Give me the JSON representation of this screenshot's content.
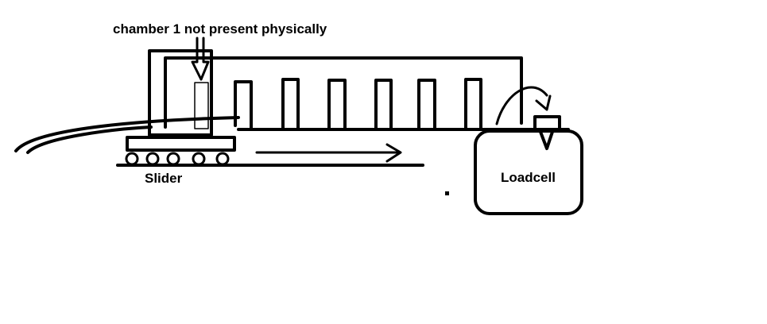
{
  "labels": {
    "chamber_note": "chamber 1 not present physically",
    "slider": "Slider",
    "loadcell": "Loadcell"
  },
  "colors": {
    "stroke": "#000000",
    "background": "#ffffff"
  }
}
